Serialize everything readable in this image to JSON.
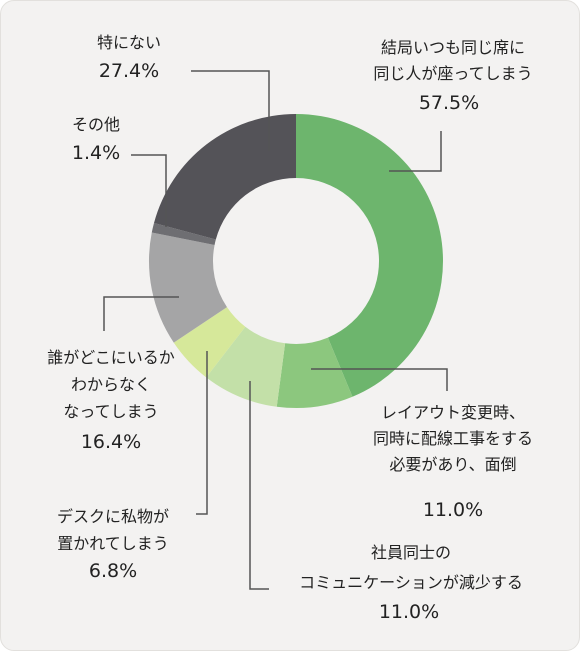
{
  "chart_data": {
    "type": "pie",
    "style": "donut",
    "direction": "clockwise from 12 o'clock",
    "slices": [
      {
        "label_lines": [
          "結局いつも同じ席に",
          "同じ人が座ってしまう"
        ],
        "pct_text": "57.5%",
        "value": 57.5,
        "color": "#6db56d"
      },
      {
        "label_lines": [
          "レイアウト変更時、",
          "同時に配線工事をする",
          "必要があり、面倒"
        ],
        "pct_text": "11.0%",
        "value": 11.0,
        "color": "#8cc77e"
      },
      {
        "label_lines": [
          "社員同士の",
          "コミュニケーションが減少する"
        ],
        "pct_text": "11.0%",
        "value": 11.0,
        "color": "#c3e0a8"
      },
      {
        "label_lines": [
          "デスクに私物が",
          "置かれてしまう"
        ],
        "pct_text": "6.8%",
        "value": 6.8,
        "color": "#d6e89a"
      },
      {
        "label_lines": [
          "誰がどこにいるか",
          "わからなく",
          "なってしまう"
        ],
        "pct_text": "16.4%",
        "value": 16.4,
        "color": "#a5a5a6"
      },
      {
        "label_lines": [
          "その他"
        ],
        "pct_text": "1.4%",
        "value": 1.4,
        "color": "#6e6e72"
      },
      {
        "label_lines": [
          "特にない"
        ],
        "pct_text": "27.4%",
        "value": 27.4,
        "color": "#545358"
      }
    ]
  }
}
